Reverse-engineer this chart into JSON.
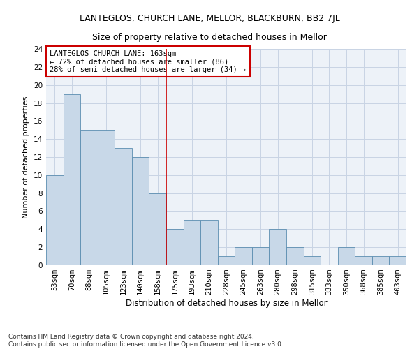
{
  "title": "LANTEGLOS, CHURCH LANE, MELLOR, BLACKBURN, BB2 7JL",
  "subtitle": "Size of property relative to detached houses in Mellor",
  "xlabel": "Distribution of detached houses by size in Mellor",
  "ylabel": "Number of detached properties",
  "categories": [
    "53sqm",
    "70sqm",
    "88sqm",
    "105sqm",
    "123sqm",
    "140sqm",
    "158sqm",
    "175sqm",
    "193sqm",
    "210sqm",
    "228sqm",
    "245sqm",
    "263sqm",
    "280sqm",
    "298sqm",
    "315sqm",
    "333sqm",
    "350sqm",
    "368sqm",
    "385sqm",
    "403sqm"
  ],
  "bar_values": [
    10,
    19,
    15,
    15,
    13,
    12,
    8,
    4,
    5,
    5,
    1,
    2,
    2,
    4,
    2,
    1,
    0,
    2,
    1,
    1,
    1
  ],
  "bar_color": "#c8d8e8",
  "bar_edgecolor": "#5b8db0",
  "grid_color": "#c8d4e4",
  "bg_color": "#edf2f8",
  "vline_x": 6.5,
  "vline_color": "#cc0000",
  "annotation_text": "LANTEGLOS CHURCH LANE: 163sqm\n← 72% of detached houses are smaller (86)\n28% of semi-detached houses are larger (34) →",
  "annotation_box_color": "#cc0000",
  "ylim": [
    0,
    24
  ],
  "yticks": [
    0,
    2,
    4,
    6,
    8,
    10,
    12,
    14,
    16,
    18,
    20,
    22,
    24
  ],
  "footer": "Contains HM Land Registry data © Crown copyright and database right 2024.\nContains public sector information licensed under the Open Government Licence v3.0.",
  "title_fontsize": 9,
  "subtitle_fontsize": 9,
  "xlabel_fontsize": 8.5,
  "ylabel_fontsize": 8,
  "tick_fontsize": 7.5,
  "annotation_fontsize": 7.5,
  "footer_fontsize": 6.5
}
